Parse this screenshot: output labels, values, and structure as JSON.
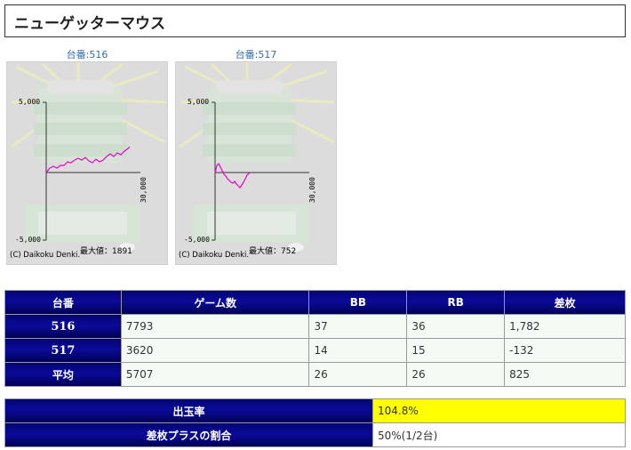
{
  "page_title": "ニューゲッターマウス",
  "graphs": [
    {
      "id_label": "台番:516",
      "y_top": "5,000",
      "y_bottom": "-5,000",
      "x_end": "30,000",
      "max_label": "最大値：1891",
      "copyright": "(C) Daikoku Denki."
    },
    {
      "id_label": "台番:517",
      "y_top": "5,000",
      "y_bottom": "-5,000",
      "x_end": "30,000",
      "max_label": "最大値：752",
      "copyright": "(C) Daikoku Denki."
    }
  ],
  "table": {
    "headers": [
      "台番",
      "ゲーム数",
      "BB",
      "RB",
      "差枚"
    ],
    "rows": [
      {
        "id": "516",
        "games": "7793",
        "bb": "37",
        "rb": "36",
        "diff": "1,782"
      },
      {
        "id": "517",
        "games": "3620",
        "bb": "14",
        "rb": "15",
        "diff": "-132"
      },
      {
        "id": "平均",
        "games": "5707",
        "bb": "26",
        "rb": "26",
        "diff": "825"
      }
    ]
  },
  "summary": {
    "payout_label": "出玉率",
    "payout_value": "104.8%",
    "plus_label": "差枚プラスの割合",
    "plus_value": "50%(1/2台)"
  },
  "colors": {
    "header_bg": "#050575",
    "highlight": "#ffff00",
    "negative": "#e00000",
    "line": "#ee00cc"
  }
}
